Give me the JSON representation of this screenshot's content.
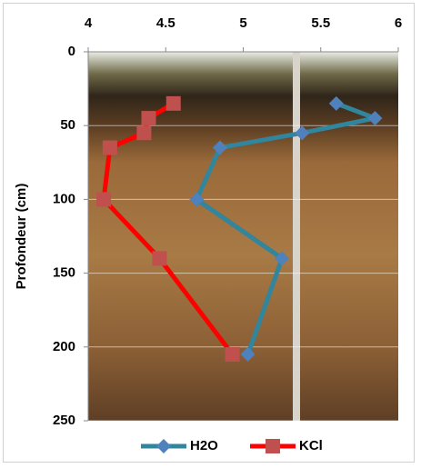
{
  "chart_data": {
    "type": "line",
    "ylabel": "Profondeur (cm)",
    "xlim": [
      4,
      6
    ],
    "xticks": [
      4,
      4.5,
      5,
      5.5,
      6
    ],
    "ylim": [
      0,
      250
    ],
    "yticks": [
      0,
      50,
      100,
      150,
      200,
      250
    ],
    "y_reversed": true,
    "grid": true,
    "legend": "bottom",
    "series": [
      {
        "name": "H2O",
        "color": "#31859c",
        "marker_color": "#4f81bd",
        "marker": "diamond",
        "x": [
          5.6,
          5.85,
          5.38,
          4.85,
          4.7,
          5.25,
          5.03
        ],
        "values": [
          35,
          45,
          55,
          65,
          100,
          140,
          205
        ]
      },
      {
        "name": "KCl",
        "color": "#ff0000",
        "marker_color": "#c0504d",
        "marker": "square",
        "x": [
          4.55,
          4.39,
          4.36,
          4.14,
          4.1,
          4.46,
          4.93
        ],
        "values": [
          35,
          45,
          55,
          65,
          100,
          140,
          205
        ]
      }
    ]
  }
}
